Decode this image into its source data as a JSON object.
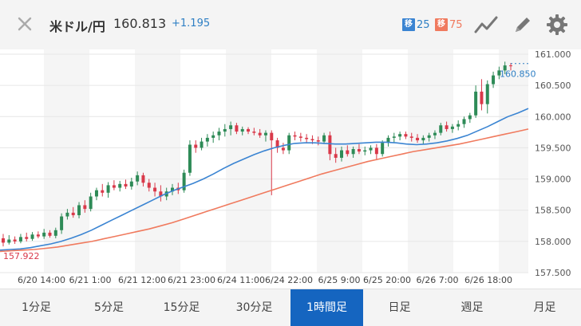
{
  "header": {
    "pair": "米ドル/円",
    "price": "160.813",
    "change": "+1.195",
    "ma_short": {
      "label": "移",
      "value": "25",
      "color": "#3a84d2"
    },
    "ma_long": {
      "label": "移",
      "value": "75",
      "color": "#f07a5e"
    },
    "icons": [
      "close-icon",
      "trend-line-icon",
      "pen-icon",
      "gear-icon"
    ]
  },
  "chart_data": {
    "type": "candlestick",
    "title": "",
    "xlabel": "",
    "ylabel": "",
    "ylim": [
      157.5,
      161.0
    ],
    "yticks": [
      "161.000",
      "160.500",
      "160.000",
      "159.500",
      "159.000",
      "158.500",
      "158.000",
      "157.500"
    ],
    "xticks": [
      "6/20 14:00",
      "6/21 1:00",
      "6/21 12:00",
      "6/21 23:00",
      "6/24 11:00",
      "6/24 22:00",
      "6/25 9:00",
      "6/25 20:00",
      "6/26 7:00",
      "6/26 18:00"
    ],
    "current_price_label": "160.850",
    "low_label": "157.922",
    "candles": [
      [
        158.05,
        158.12,
        157.92,
        157.98
      ],
      [
        157.98,
        158.1,
        157.95,
        158.03
      ],
      [
        158.03,
        158.08,
        157.96,
        158.0
      ],
      [
        158.0,
        158.12,
        157.97,
        158.07
      ],
      [
        158.07,
        158.14,
        158.0,
        158.04
      ],
      [
        158.04,
        158.15,
        158.01,
        158.11
      ],
      [
        158.11,
        158.16,
        158.05,
        158.08
      ],
      [
        158.08,
        158.2,
        158.04,
        158.14
      ],
      [
        158.14,
        158.18,
        158.06,
        158.09
      ],
      [
        158.09,
        158.22,
        158.05,
        158.18
      ],
      [
        158.18,
        158.45,
        158.12,
        158.4
      ],
      [
        158.4,
        158.52,
        158.35,
        158.46
      ],
      [
        158.46,
        158.55,
        158.38,
        158.42
      ],
      [
        158.42,
        158.63,
        158.37,
        158.58
      ],
      [
        158.58,
        158.66,
        158.46,
        158.52
      ],
      [
        158.52,
        158.78,
        158.48,
        158.72
      ],
      [
        158.72,
        158.86,
        158.66,
        158.82
      ],
      [
        158.82,
        158.92,
        158.72,
        158.78
      ],
      [
        158.78,
        158.95,
        158.7,
        158.9
      ],
      [
        158.9,
        158.98,
        158.82,
        158.86
      ],
      [
        158.86,
        158.97,
        158.8,
        158.92
      ],
      [
        158.92,
        158.99,
        158.84,
        158.88
      ],
      [
        158.88,
        159.02,
        158.83,
        158.96
      ],
      [
        158.96,
        159.12,
        158.9,
        159.06
      ],
      [
        159.06,
        159.1,
        158.88,
        158.94
      ],
      [
        158.94,
        159.0,
        158.8,
        158.86
      ],
      [
        158.86,
        158.94,
        158.72,
        158.8
      ],
      [
        158.8,
        158.9,
        158.64,
        158.72
      ],
      [
        158.72,
        158.86,
        158.66,
        158.8
      ],
      [
        158.8,
        158.92,
        158.74,
        158.86
      ],
      [
        158.86,
        158.94,
        158.76,
        158.82
      ],
      [
        158.82,
        159.15,
        158.78,
        159.1
      ],
      [
        159.1,
        159.62,
        159.05,
        159.55
      ],
      [
        159.55,
        159.62,
        159.42,
        159.5
      ],
      [
        159.5,
        159.66,
        159.46,
        159.6
      ],
      [
        159.6,
        159.72,
        159.52,
        159.66
      ],
      [
        159.66,
        159.76,
        159.58,
        159.7
      ],
      [
        159.7,
        159.82,
        159.62,
        159.76
      ],
      [
        159.76,
        159.88,
        159.68,
        159.8
      ],
      [
        159.8,
        159.92,
        159.7,
        159.86
      ],
      [
        159.86,
        159.9,
        159.72,
        159.76
      ],
      [
        159.76,
        159.84,
        159.7,
        159.8
      ],
      [
        159.8,
        159.83,
        159.72,
        159.76
      ],
      [
        159.76,
        159.82,
        159.7,
        159.74
      ],
      [
        159.74,
        159.8,
        159.66,
        159.7
      ],
      [
        159.7,
        159.78,
        159.6,
        159.74
      ],
      [
        159.74,
        159.78,
        158.74,
        159.62
      ],
      [
        159.62,
        159.66,
        159.42,
        159.5
      ],
      [
        159.5,
        159.58,
        159.4,
        159.46
      ],
      [
        159.46,
        159.74,
        159.4,
        159.7
      ],
      [
        159.7,
        159.76,
        159.62,
        159.68
      ],
      [
        159.68,
        159.74,
        159.6,
        159.66
      ],
      [
        159.66,
        159.72,
        159.58,
        159.64
      ],
      [
        159.64,
        159.7,
        159.56,
        159.62
      ],
      [
        159.62,
        159.68,
        159.54,
        159.6
      ],
      [
        159.6,
        159.74,
        159.56,
        159.7
      ],
      [
        159.7,
        159.76,
        159.3,
        159.4
      ],
      [
        159.4,
        159.5,
        159.26,
        159.34
      ],
      [
        159.34,
        159.52,
        159.28,
        159.46
      ],
      [
        159.46,
        159.54,
        159.36,
        159.4
      ],
      [
        159.4,
        159.52,
        159.34,
        159.48
      ],
      [
        159.48,
        159.56,
        159.4,
        159.44
      ],
      [
        159.44,
        159.52,
        159.38,
        159.46
      ],
      [
        159.46,
        159.54,
        159.4,
        159.5
      ],
      [
        159.5,
        159.56,
        159.3,
        159.4
      ],
      [
        159.4,
        159.62,
        159.36,
        159.58
      ],
      [
        159.58,
        159.7,
        159.52,
        159.66
      ],
      [
        159.66,
        159.74,
        159.58,
        159.68
      ],
      [
        159.68,
        159.76,
        159.62,
        159.72
      ],
      [
        159.72,
        159.76,
        159.64,
        159.68
      ],
      [
        159.68,
        159.74,
        159.6,
        159.66
      ],
      [
        159.66,
        159.72,
        159.58,
        159.62
      ],
      [
        159.62,
        159.7,
        159.56,
        159.66
      ],
      [
        159.66,
        159.74,
        159.6,
        159.7
      ],
      [
        159.7,
        159.78,
        159.64,
        159.74
      ],
      [
        159.74,
        159.9,
        159.7,
        159.86
      ],
      [
        159.86,
        159.92,
        159.76,
        159.8
      ],
      [
        159.8,
        159.88,
        159.74,
        159.84
      ],
      [
        159.84,
        159.94,
        159.78,
        159.88
      ],
      [
        159.88,
        160.0,
        159.82,
        159.96
      ],
      [
        159.96,
        160.06,
        159.9,
        160.02
      ],
      [
        160.02,
        160.5,
        159.98,
        160.4
      ],
      [
        160.4,
        160.6,
        160.1,
        160.2
      ],
      [
        160.2,
        160.58,
        160.05,
        160.52
      ],
      [
        160.52,
        160.72,
        160.46,
        160.66
      ],
      [
        160.66,
        160.8,
        160.6,
        160.74
      ],
      [
        160.74,
        160.88,
        160.68,
        160.82
      ],
      [
        160.82,
        160.86,
        160.74,
        160.81
      ]
    ],
    "ma_short_values": [
      157.86,
      157.87,
      157.88,
      157.9,
      157.93,
      157.96,
      158.0,
      158.05,
      158.11,
      158.18,
      158.26,
      158.34,
      158.42,
      158.5,
      158.58,
      158.66,
      158.74,
      158.81,
      158.87,
      158.93,
      159.0,
      159.08,
      159.17,
      159.25,
      159.32,
      159.39,
      159.45,
      159.5,
      159.54,
      159.57,
      159.58,
      159.58,
      159.57,
      159.56,
      159.56,
      159.57,
      159.58,
      159.59,
      159.59,
      159.58,
      159.56,
      159.55,
      159.56,
      159.58,
      159.61,
      159.65,
      159.7,
      159.77,
      159.84,
      159.92,
      160.0,
      160.06,
      160.13
    ],
    "ma_long_values": [
      157.84,
      157.85,
      157.86,
      157.87,
      157.89,
      157.91,
      157.94,
      157.97,
      158.0,
      158.04,
      158.08,
      158.12,
      158.16,
      158.2,
      158.25,
      158.3,
      158.36,
      158.42,
      158.48,
      158.54,
      158.6,
      158.66,
      158.72,
      158.78,
      158.84,
      158.9,
      158.96,
      159.02,
      159.08,
      159.13,
      159.18,
      159.23,
      159.28,
      159.32,
      159.36,
      159.4,
      159.44,
      159.47,
      159.5,
      159.53,
      159.56,
      159.6,
      159.64,
      159.68,
      159.72,
      159.76,
      159.8
    ]
  },
  "timeframes": [
    "1分足",
    "5分足",
    "15分足",
    "30分足",
    "1時間足",
    "日足",
    "週足",
    "月足"
  ],
  "active_timeframe": "1時間足"
}
